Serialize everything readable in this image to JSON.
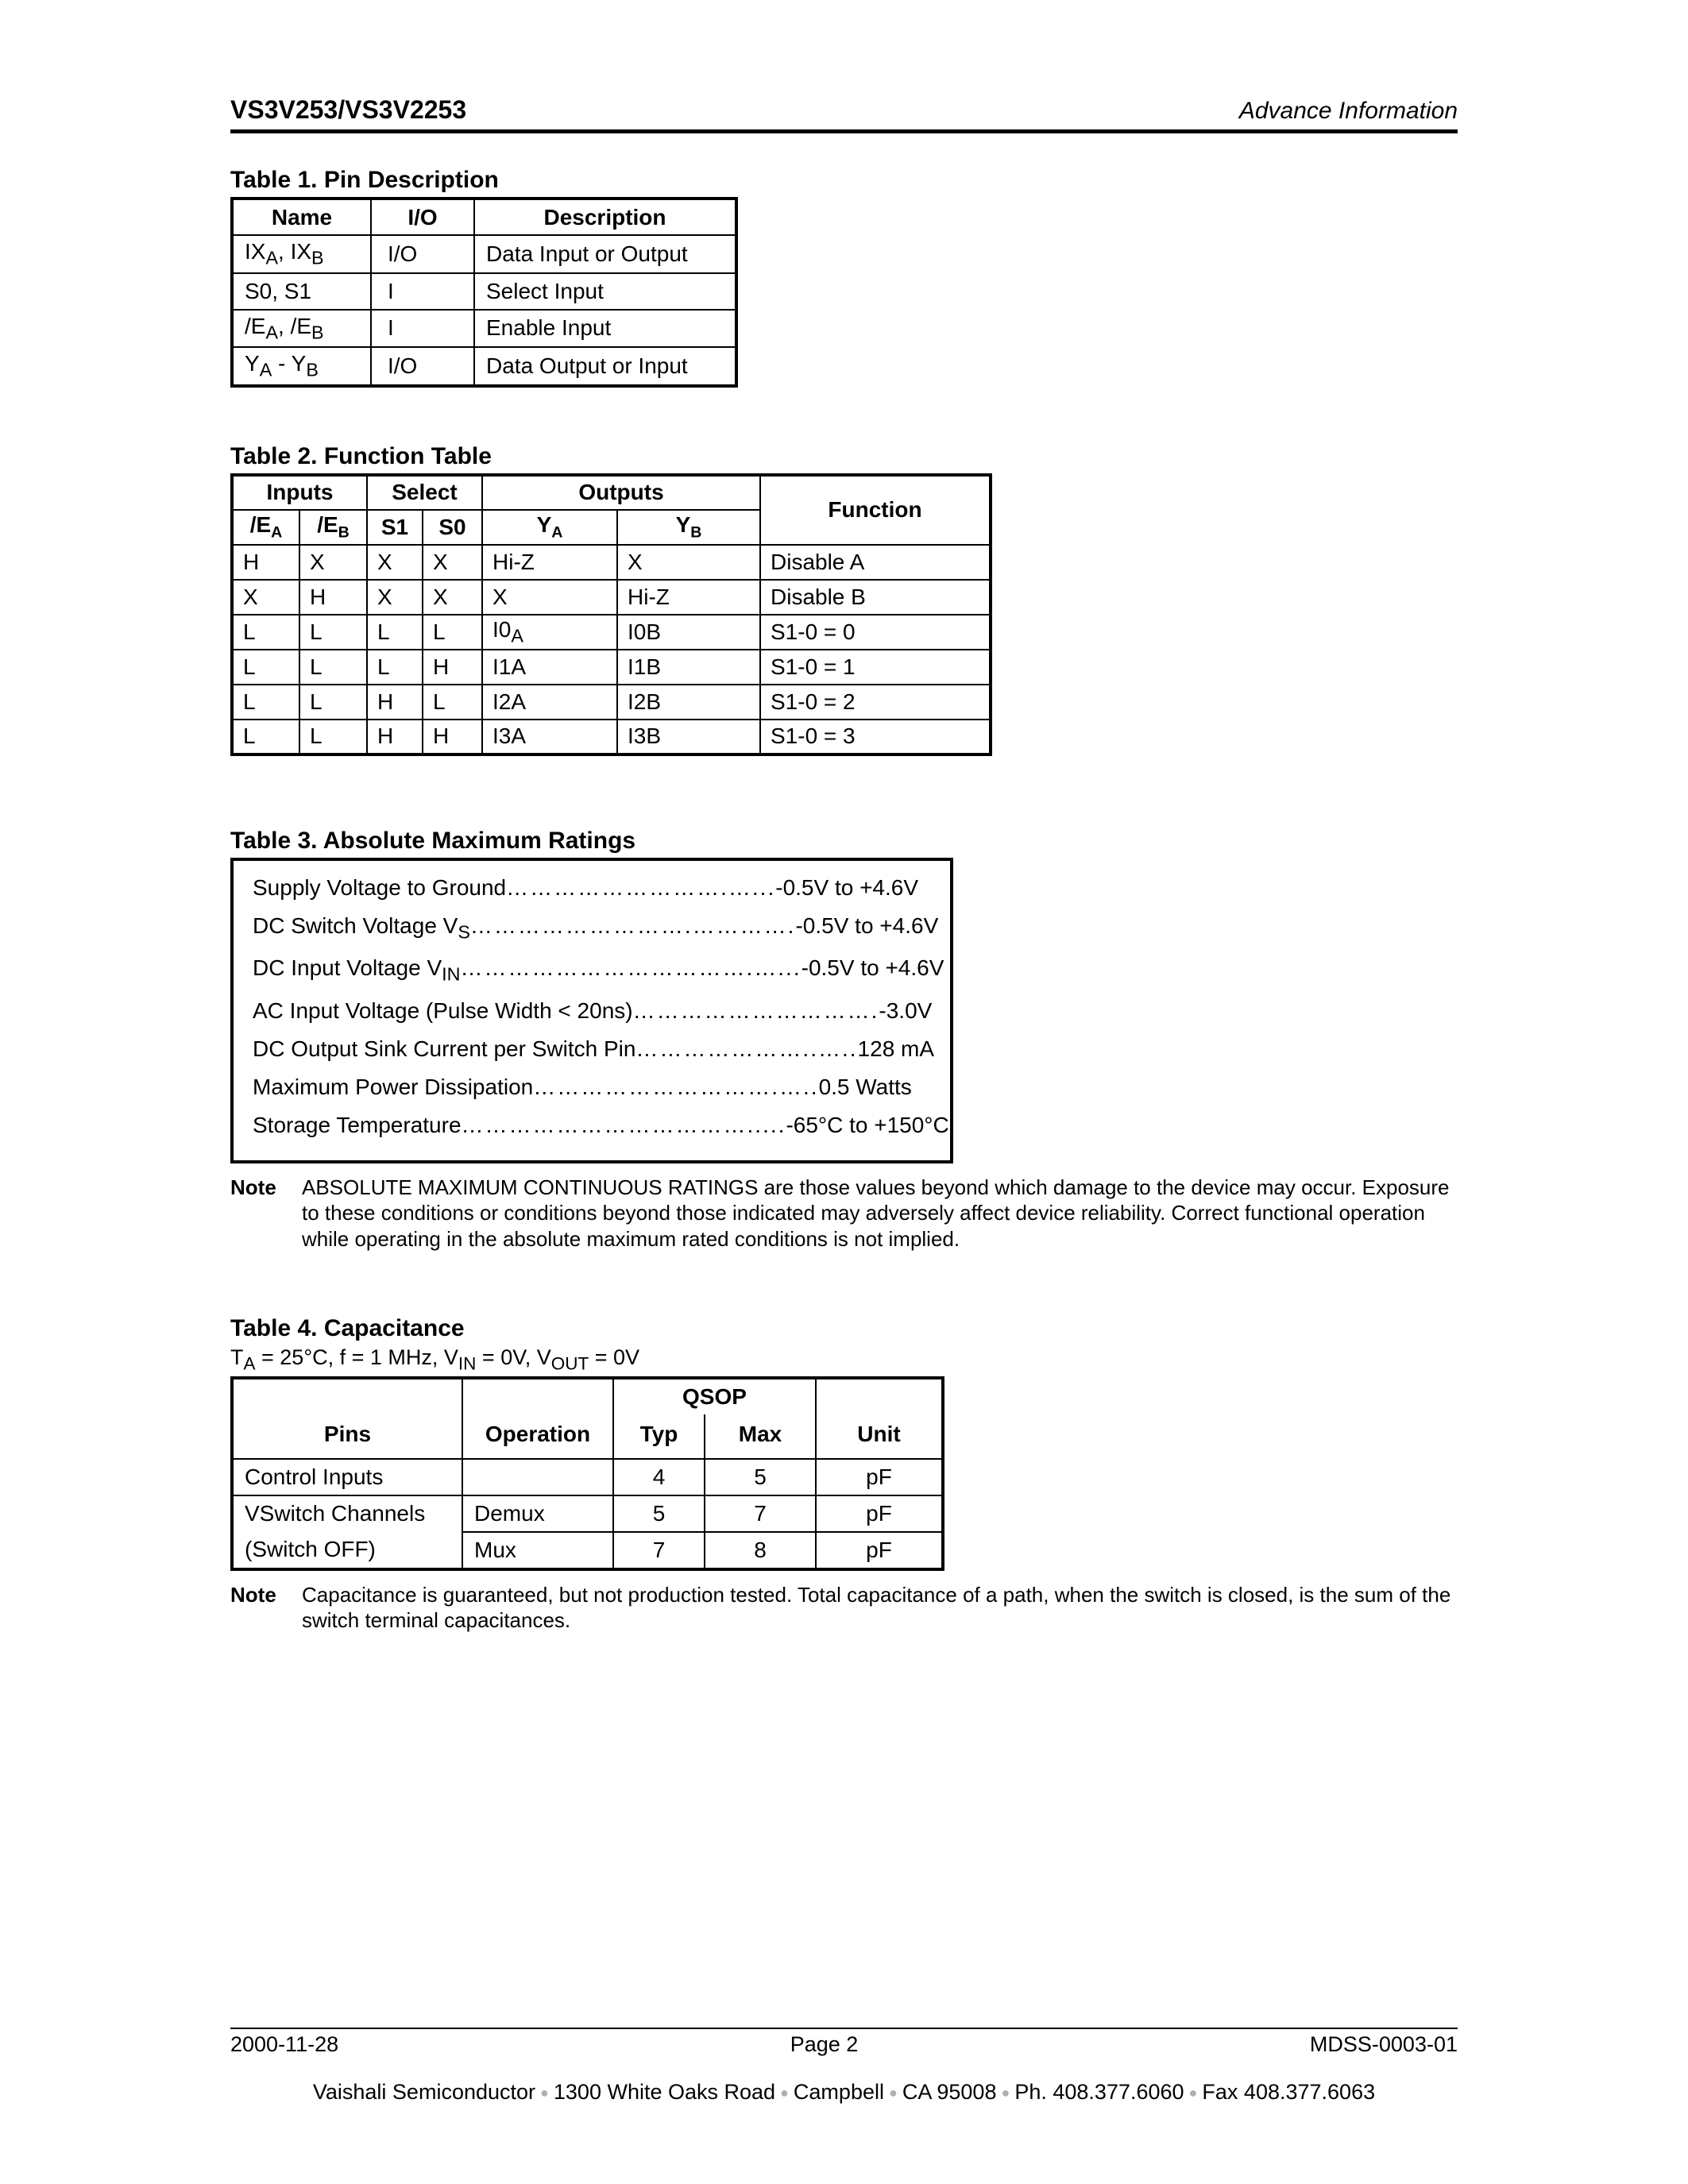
{
  "header": {
    "left": "VS3V253/VS3V2253",
    "right": "Advance Information"
  },
  "table1": {
    "title": "Table 1.  Pin Description",
    "headers": {
      "name": "Name",
      "io": "I/O",
      "desc": "Description"
    },
    "rows": [
      {
        "name_html": "IX<sub>A</sub>, IX<sub>B</sub>",
        "io": "I/O",
        "desc": "Data Input or Output"
      },
      {
        "name_html": "S0, S1",
        "io": "I",
        "desc": "Select Input"
      },
      {
        "name_html": "/E<sub>A</sub>, /E<sub>B</sub>",
        "io": "I",
        "desc": "Enable Input"
      },
      {
        "name_html": "Y<sub>A</sub> - Y<sub>B</sub>",
        "io": "I/O",
        "desc": "Data Output or Input"
      }
    ]
  },
  "table2": {
    "title": "Table 2.  Function Table",
    "group_headers": {
      "inputs": "Inputs",
      "select": "Select",
      "outputs": "Outputs",
      "function": "Function"
    },
    "sub_headers": {
      "ea": "/E",
      "ea_sub": "A",
      "eb": "/E",
      "eb_sub": "B",
      "s1": "S1",
      "s0": "S0",
      "ya": "Y",
      "ya_sub": "A",
      "yb": "Y",
      "yb_sub": "B"
    },
    "rows": [
      {
        "ea": "H",
        "eb": "X",
        "s1": "X",
        "s0": "X",
        "ya": "Hi-Z",
        "yb": "X",
        "fn": "Disable A"
      },
      {
        "ea": "X",
        "eb": "H",
        "s1": "X",
        "s0": "X",
        "ya": "X",
        "yb": "Hi-Z",
        "fn": "Disable B"
      },
      {
        "ea": "L",
        "eb": "L",
        "s1": "L",
        "s0": "L",
        "ya_html": "I0<sub>A</sub>",
        "yb": "I0B",
        "fn": "S1-0 = 0"
      },
      {
        "ea": "L",
        "eb": "L",
        "s1": "L",
        "s0": "H",
        "ya": "I1A",
        "yb": "I1B",
        "fn": "S1-0 = 1"
      },
      {
        "ea": "L",
        "eb": "L",
        "s1": "H",
        "s0": "L",
        "ya": "I2A",
        "yb": "I2B",
        "fn": "S1-0 = 2"
      },
      {
        "ea": "L",
        "eb": "L",
        "s1": "H",
        "s0": "H",
        "ya": "I3A",
        "yb": "I3B",
        "fn": "S1-0 = 3"
      }
    ]
  },
  "table3": {
    "title": "Table 3.  Absolute Maximum Ratings",
    "rows": [
      {
        "label_html": "Supply Voltage to Ground",
        "dots": "……………………….…...",
        "value": "-0.5V to +4.6V"
      },
      {
        "label_html": "DC Switch Voltage V<sub>S</sub>",
        "dots": "……………………….………….",
        "value": "-0.5V to +4.6V"
      },
      {
        "label_html": "DC Input Voltage V<sub>IN</sub>",
        "dots": "……………………………….…...",
        "value": "-0.5V to +4.6V"
      },
      {
        "label_html": "AC Input Voltage (Pulse Width < 20ns)",
        "dots": "………………………….",
        "value": "-3.0V"
      },
      {
        "label_html": "DC Output Sink Current per Switch Pin",
        "dots": "…………………..…..",
        "value": "128 mA"
      },
      {
        "label_html": "Maximum Power Dissipation",
        "dots": "………………………….…..",
        "value": "0.5 Watts"
      },
      {
        "label_html": "Storage Temperature",
        "dots": "……………………………….....",
        "value_html": "-65°C to +150°C"
      }
    ],
    "note_label": "Note",
    "note_text": "ABSOLUTE MAXIMUM CONTINUOUS RATINGS are those values beyond which damage to the device may occur. Exposure to these conditions or conditions beyond those indicated may adversely affect device reliability. Correct functional operation while operating in the absolute maximum rated conditions is not implied."
  },
  "table4": {
    "title": "Table 4.  Capacitance",
    "condition_html": "T<sub>A</sub> = 25°C, f = 1 MHz, V<sub>IN</sub> = 0V, V<sub>OUT</sub> = 0V",
    "hdr_qsop": "QSOP",
    "hdr_pins": "Pins",
    "hdr_op": "Operation",
    "hdr_typ": "Typ",
    "hdr_max": "Max",
    "hdr_unit": "Unit",
    "rows": [
      {
        "pins": "Control Inputs",
        "op": "",
        "typ": "4",
        "max": "5",
        "unit": "pF",
        "merge_below": false
      },
      {
        "pins": "VSwitch Channels",
        "op": "Demux",
        "typ": "5",
        "max": "7",
        "unit": "pF",
        "merge_below": true
      },
      {
        "pins": "(Switch OFF)",
        "op": "Mux",
        "typ": "7",
        "max": "8",
        "unit": "pF",
        "merge_above": true
      }
    ],
    "note_label": "Note",
    "note_text": "Capacitance is guaranteed, but not production tested. Total capacitance of a path, when the switch is closed, is the sum of the switch terminal capacitances."
  },
  "footer": {
    "date": "2000-11-28",
    "page": "Page 2",
    "doc": "MDSS-0003-01",
    "address": [
      "Vaishali Semiconductor",
      "1300 White Oaks Road",
      "Campbell",
      "CA 95008",
      "Ph. 408.377.6060",
      "Fax 408.377.6063"
    ]
  }
}
